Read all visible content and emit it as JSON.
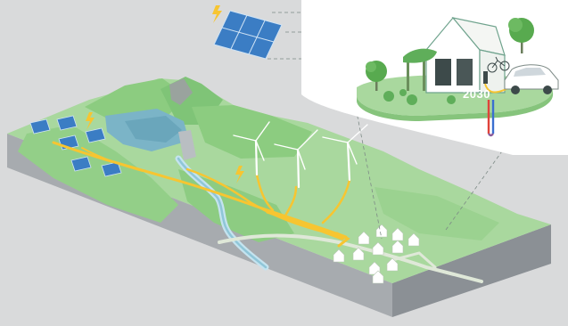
{
  "inset": {
    "year_label": "2030"
  },
  "colors": {
    "background": "#d9dadb",
    "terrain_light": "#a9d89e",
    "terrain_mid": "#8ccc80",
    "terrain_dark": "#6fbf6b",
    "cliff_side": "#8b9095",
    "cliff_front": "#a7abaf",
    "water": "#7bb4c7",
    "energy_flow": "#f7c531",
    "panel_blue": "#3b7dc4",
    "inset_white": "#ffffff",
    "heat_pipe_red": "#e0423a",
    "heat_pipe_blue": "#3a6fd0"
  },
  "icons": [
    "lightning-icon",
    "solar-panel-icon",
    "wind-turbine-icon",
    "house-icon",
    "electric-car-icon",
    "bicycle-icon",
    "tree-icon"
  ]
}
